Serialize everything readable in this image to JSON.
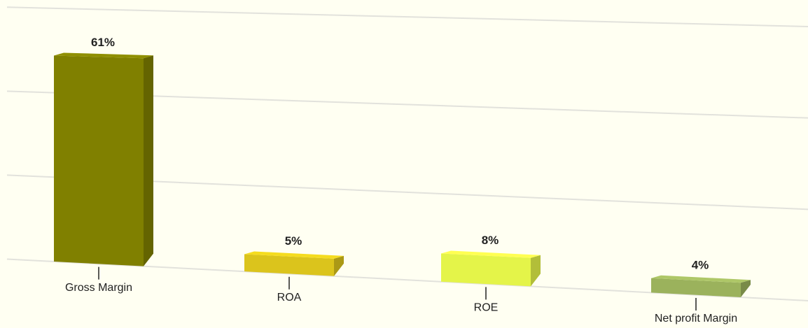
{
  "chart_data": {
    "type": "bar3d",
    "categories": [
      "Gross Margin",
      "ROA",
      "ROE",
      "Net profit Margin"
    ],
    "values": [
      61,
      5,
      8,
      4
    ],
    "value_labels": [
      "61%",
      "5%",
      "8%",
      "4%"
    ],
    "colors": [
      "#808000",
      "#dbc41c",
      "#e4f449",
      "#9bb25c"
    ],
    "ylim": [
      0,
      75
    ],
    "yticks": [
      0,
      25,
      50,
      75
    ],
    "grid": true
  }
}
